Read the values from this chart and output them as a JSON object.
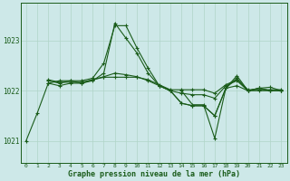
{
  "xlabel": "Graphe pression niveau de la mer (hPa)",
  "background_color": "#cde8e8",
  "grid_color": "#b0d4c8",
  "line_color": "#1a5c1a",
  "x_ticks": [
    0,
    1,
    2,
    3,
    4,
    5,
    6,
    7,
    8,
    9,
    10,
    11,
    12,
    13,
    14,
    15,
    16,
    17,
    18,
    19,
    20,
    21,
    22,
    23
  ],
  "ylim": [
    1020.55,
    1023.75
  ],
  "yticks": [
    1021,
    1022,
    1023
  ],
  "figsize": [
    3.2,
    2.0
  ],
  "dpi": 100,
  "series": [
    [
      1021.0,
      1021.55,
      1022.15,
      1022.2,
      1022.2,
      1022.2,
      1022.25,
      1022.55,
      1023.3,
      1023.3,
      1022.85,
      1022.45,
      1022.1,
      1022.0,
      1021.75,
      1021.7,
      1021.7,
      1021.5,
      1022.05,
      1022.3,
      1022.0,
      1022.05,
      1022.0,
      1022.0
    ],
    [
      null,
      null,
      1022.15,
      1022.1,
      1022.15,
      1022.15,
      1022.2,
      1022.35,
      1023.35,
      1023.05,
      1022.75,
      1022.35,
      1022.1,
      1022.0,
      1021.75,
      1021.7,
      1021.7,
      1021.5,
      1022.05,
      1022.1,
      1022.0,
      1022.0,
      1022.0,
      1022.0
    ],
    [
      null,
      null,
      1022.2,
      1022.15,
      1022.2,
      1022.15,
      1022.22,
      1022.28,
      1022.35,
      1022.32,
      1022.28,
      1022.2,
      1022.1,
      1022.0,
      1021.95,
      1021.92,
      1021.92,
      1021.85,
      1022.1,
      1022.2,
      1022.0,
      1022.05,
      1022.0,
      1022.0
    ],
    [
      null,
      null,
      1022.22,
      1022.17,
      1022.17,
      1022.17,
      1022.22,
      1022.27,
      1022.27,
      1022.27,
      1022.27,
      1022.22,
      1022.12,
      1022.02,
      1022.02,
      1022.02,
      1022.02,
      1021.95,
      1022.12,
      1022.22,
      1022.02,
      1022.02,
      1022.02,
      1022.02
    ],
    [
      null,
      null,
      null,
      null,
      null,
      null,
      null,
      null,
      null,
      null,
      null,
      null,
      null,
      null,
      1022.0,
      1021.72,
      1021.72,
      1021.05,
      1022.05,
      1022.25,
      1022.0,
      1022.05,
      1022.07,
      1022.0
    ]
  ]
}
